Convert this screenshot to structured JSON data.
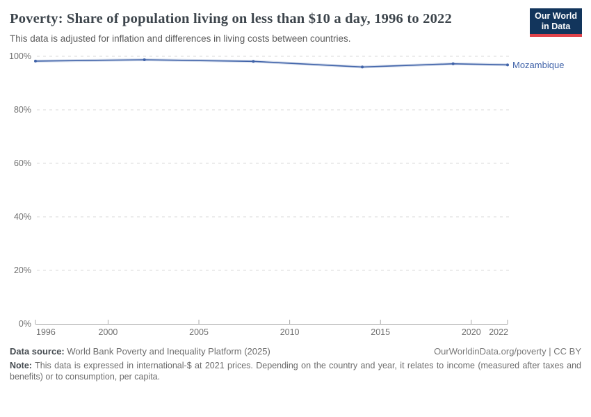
{
  "header": {
    "title": "Poverty: Share of population living on less than $10 a day, 1996 to 2022",
    "subtitle": "This data is adjusted for inflation and differences in living costs between countries.",
    "logo": {
      "line1": "Our World",
      "line2": "in Data",
      "bg_color": "#12355c",
      "bar_color": "#e0434a"
    }
  },
  "chart_data": {
    "type": "line",
    "series": [
      {
        "name": "Mozambique",
        "color": "#4063a9",
        "x": [
          1996,
          2002,
          2008,
          2014,
          2019,
          2022
        ],
        "values": [
          98.2,
          98.7,
          98.1,
          96.0,
          97.2,
          96.8
        ]
      }
    ],
    "x_ticks": [
      1996,
      2000,
      2005,
      2010,
      2015,
      2020,
      2022
    ],
    "y_ticks": [
      0,
      20,
      40,
      60,
      80,
      100
    ],
    "y_tick_suffix": "%",
    "xlim": [
      1996,
      2022
    ],
    "ylim": [
      0,
      100
    ],
    "grid": "horizontal-dashed",
    "legend_position": "right-of-line-end",
    "axis_colors": {
      "grid": "#dadada",
      "axis": "#a8a8a8",
      "tick_label": "#6e6e6e"
    }
  },
  "footer": {
    "source_label": "Data source:",
    "source_text": " World Bank Poverty and Inequality Platform (2025)",
    "rights": "OurWorldinData.org/poverty | CC BY",
    "note_label": "Note:",
    "note_text": " This data is expressed in international-$ at 2021 prices. Depending on the country and year, it relates to income (measured after taxes and benefits) or to consumption, per capita."
  }
}
